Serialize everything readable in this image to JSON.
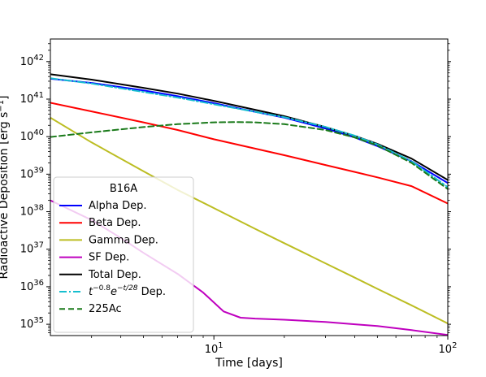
{
  "chart_data": {
    "type": "line",
    "title": "",
    "xlabel": "Time [days]",
    "ylabel": "Radioactive Deposition [erg s",
    "ylabel_unit_exp": "−1",
    "ylabel_close": "]",
    "xscale": "log",
    "yscale": "log",
    "xlim": [
      2,
      100
    ],
    "ylim": [
      5e+34,
      4e+42
    ],
    "x_ticks": [
      {
        "value": 10,
        "base": "10",
        "exp": "1"
      },
      {
        "value": 100,
        "base": "10",
        "exp": "2"
      }
    ],
    "y_ticks": [
      {
        "value": 1e+35,
        "base": "10",
        "exp": "35"
      },
      {
        "value": 1e+36,
        "base": "10",
        "exp": "36"
      },
      {
        "value": 1e+37,
        "base": "10",
        "exp": "37"
      },
      {
        "value": 1e+38,
        "base": "10",
        "exp": "38"
      },
      {
        "value": 1e+39,
        "base": "10",
        "exp": "39"
      },
      {
        "value": 1e+40,
        "base": "10",
        "exp": "40"
      },
      {
        "value": 1e+41,
        "base": "10",
        "exp": "41"
      },
      {
        "value": 1e+42,
        "base": "10",
        "exp": "42"
      }
    ],
    "grid": false,
    "legend": {
      "title": "B16A",
      "placement": "lower-left",
      "entries": [
        "Alpha Dep.",
        "Beta Dep.",
        "Gamma Dep.",
        "SF Dep.",
        "Total Dep.",
        "t^{-0.8}e^{-t/28} Dep.",
        "225Ac"
      ],
      "fit_label": {
        "t": "t",
        "exp1": "−0.8",
        "e": "e",
        "exp2": "−t/28",
        "tail": " Dep."
      }
    },
    "series": [
      {
        "name": "Alpha Dep.",
        "color": "#0000ff",
        "style": "solid",
        "x": [
          2,
          3,
          5,
          7,
          10,
          15,
          20,
          30,
          40,
          50,
          70,
          100
        ],
        "y": [
          3.5e+41,
          2.7e+41,
          1.7e+41,
          1.2e+41,
          7.8e+40,
          4.6e+40,
          3.2e+40,
          1.65e+40,
          9.5e+39,
          5.6e+39,
          2.2e+39,
          5.8e+38
        ]
      },
      {
        "name": "Beta Dep.",
        "color": "#ff0000",
        "style": "solid",
        "x": [
          2,
          3,
          5,
          7,
          10,
          15,
          20,
          30,
          40,
          50,
          70,
          100
        ],
        "y": [
          8e+40,
          4.7e+40,
          2.4e+40,
          1.5e+40,
          8.5e+39,
          4.8e+39,
          3.2e+39,
          1.75e+39,
          1.15e+39,
          8.2e+38,
          4.8e+38,
          1.65e+38
        ]
      },
      {
        "name": "Gamma Dep.",
        "color": "#bcbd22",
        "style": "solid",
        "x": [
          2,
          3,
          5,
          7,
          10,
          15,
          20,
          30,
          40,
          50,
          70,
          100
        ],
        "y": [
          3.2e+40,
          7e+39,
          1.2e+39,
          3.8e+38,
          1.25e+38,
          3.5e+37,
          1.45e+37,
          4.2e+36,
          1.75e+36,
          8.8e+35,
          3.2e+35,
          1.05e+35
        ]
      },
      {
        "name": "SF Dep.",
        "color": "#bf00bf",
        "style": "solid",
        "x": [
          2,
          3,
          4,
          5,
          7,
          9,
          11,
          13,
          15,
          20,
          30,
          40,
          50,
          70,
          100
        ],
        "y": [
          2e+38,
          6e+37,
          2e+37,
          8e+36,
          2.2e+36,
          7e+35,
          2.2e+35,
          1.5e+35,
          1.42e+35,
          1.32e+35,
          1.15e+35,
          1e+35,
          9e+34,
          7e+34,
          5.2e+34
        ]
      },
      {
        "name": "Total Dep.",
        "color": "#000000",
        "style": "solid",
        "x": [
          2,
          3,
          5,
          7,
          10,
          15,
          20,
          30,
          40,
          50,
          70,
          100
        ],
        "y": [
          4.6e+41,
          3.3e+41,
          2e+41,
          1.4e+41,
          9e+40,
          5.2e+40,
          3.5e+40,
          1.8e+40,
          1.05e+40,
          6.4e+39,
          2.6e+39,
          7e+38
        ]
      },
      {
        "name": "t^{-0.8}e^{-t/28} Dep.",
        "color": "#17becf",
        "style": "dashdot",
        "x": [
          2,
          3,
          5,
          7,
          10,
          15,
          20,
          30,
          40,
          50,
          70,
          100
        ],
        "y": [
          3.6e+41,
          2.6e+41,
          1.55e+41,
          1.1e+41,
          7.3e+40,
          4.6e+40,
          3.3e+40,
          1.82e+40,
          1.06e+40,
          6.2e+39,
          2.2e+39,
          4.5e+38
        ]
      },
      {
        "name": "225Ac",
        "color": "#1a7a1a",
        "style": "dashed",
        "x": [
          2,
          3,
          5,
          7,
          10,
          12.5,
          15,
          20,
          30,
          40,
          50,
          70,
          100
        ],
        "y": [
          9.8e+39,
          1.3e+40,
          1.8e+40,
          2.15e+40,
          2.4e+40,
          2.45e+40,
          2.4e+40,
          2.15e+40,
          1.5e+40,
          9.5e+39,
          5.8e+39,
          2e+39,
          4e+38
        ]
      }
    ]
  }
}
